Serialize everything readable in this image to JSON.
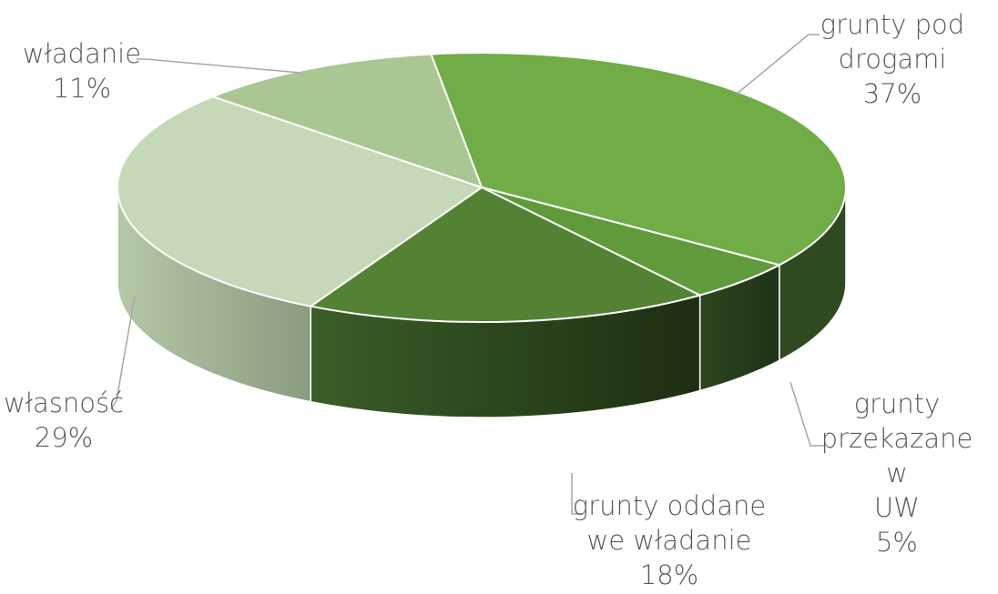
{
  "chart_data": {
    "type": "pie",
    "style": "3d-exploded-none",
    "title": "",
    "slices": [
      {
        "label": "grunty pod drogami",
        "label_lines": [
          "grunty pod",
          "drogami"
        ],
        "pct_text": "37%",
        "value": 37,
        "color": "#70ad47"
      },
      {
        "label": "grunty przekazane w UW",
        "label_lines": [
          "grunty",
          "przekazane w",
          "UW"
        ],
        "pct_text": "5%",
        "value": 5,
        "color": "#5f9a3b"
      },
      {
        "label": "grunty oddane we władanie",
        "label_lines": [
          "grunty oddane",
          "we władanie"
        ],
        "pct_text": "18%",
        "value": 18,
        "color": "#548235"
      },
      {
        "label": "własność",
        "label_lines": [
          "własność"
        ],
        "pct_text": "29%",
        "value": 29,
        "color": "#c5d9b8"
      },
      {
        "label": "władanie",
        "label_lines": [
          "władanie"
        ],
        "pct_text": "11%",
        "value": 11,
        "color": "#a9c693"
      }
    ]
  }
}
